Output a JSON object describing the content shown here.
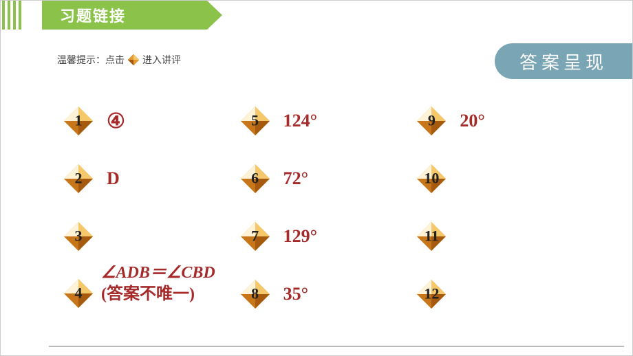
{
  "header": {
    "title": "习题链接"
  },
  "tip": {
    "prefix": "温馨提示：点击",
    "suffix": "进入讲评"
  },
  "badge": {
    "label": "答案呈现"
  },
  "colors": {
    "header_bg": "#8bc34a",
    "badge_bg": "#7aa5b5",
    "answer_color": "#A52A2A",
    "diamond_light": "#f5c96b",
    "diamond_mid": "#e59a2f",
    "diamond_dark": "#c7761a",
    "diamond_deep": "#a55a0e",
    "diamond_hi": "#fef3d6"
  },
  "items": [
    {
      "num": "1",
      "answer": "④",
      "style": "circled"
    },
    {
      "num": "5",
      "answer": "124°",
      "style": "plain"
    },
    {
      "num": "9",
      "answer": "20°",
      "style": "plain"
    },
    {
      "num": "2",
      "answer": "D",
      "style": "plain"
    },
    {
      "num": "6",
      "answer": "72°",
      "style": "plain"
    },
    {
      "num": "10",
      "answer": "",
      "style": "plain"
    },
    {
      "num": "3",
      "answer": "",
      "style": "plain"
    },
    {
      "num": "7",
      "answer": "129°",
      "style": "plain"
    },
    {
      "num": "11",
      "answer": "",
      "style": "plain"
    },
    {
      "num": "4",
      "answer_line1": "∠ADB＝∠CBD",
      "answer_line2": "(答案不唯一)",
      "style": "multi"
    },
    {
      "num": "8",
      "answer": "35°",
      "style": "plain"
    },
    {
      "num": "12",
      "answer": "",
      "style": "plain"
    }
  ]
}
